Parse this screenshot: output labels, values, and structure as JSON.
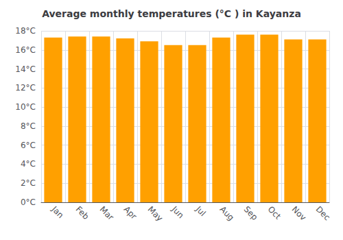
{
  "chart_data": {
    "type": "bar",
    "title": "Average monthly temperatures (°C ) in Kayanza",
    "categories": [
      "Jan",
      "Feb",
      "Mar",
      "Apr",
      "May",
      "Jun",
      "Jul",
      "Aug",
      "Sep",
      "Oct",
      "Nov",
      "Dec"
    ],
    "values": [
      17.3,
      17.4,
      17.4,
      17.2,
      16.9,
      16.5,
      16.5,
      17.3,
      17.6,
      17.6,
      17.1,
      17.1
    ],
    "color": "#FFA000",
    "ylim": [
      0,
      18
    ],
    "yticks": [
      {
        "value": 0,
        "label": "0°C"
      },
      {
        "value": 2,
        "label": "2°C"
      },
      {
        "value": 4,
        "label": "4°C"
      },
      {
        "value": 6,
        "label": "6°C"
      },
      {
        "value": 8,
        "label": "8°C"
      },
      {
        "value": 10,
        "label": "10°C"
      },
      {
        "value": 12,
        "label": "12°C"
      },
      {
        "value": 14,
        "label": "14°C"
      },
      {
        "value": 16,
        "label": "16°C"
      },
      {
        "value": 18,
        "label": "18°C"
      }
    ],
    "grid": true
  }
}
